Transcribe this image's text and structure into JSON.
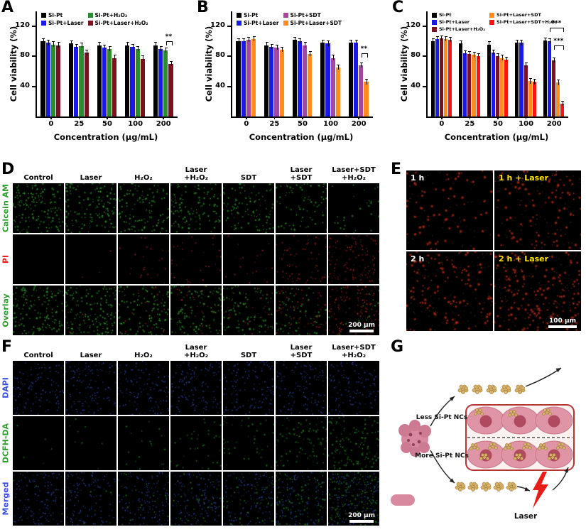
{
  "chart_data": [
    {
      "panel_letter": "A",
      "type": "bar",
      "categories": [
        "0",
        "25",
        "50",
        "100",
        "200"
      ],
      "xlabel": "Concentration (μg/mL)",
      "ylabel": "Cell viability (%)",
      "ylim": [
        0,
        140
      ],
      "yticks": [
        40,
        80,
        120
      ],
      "error": 3,
      "legend_position": "top-inside",
      "series": [
        {
          "name": "Si-Pt",
          "color": "#000000",
          "values": [
            100,
            97,
            95,
            95,
            95
          ]
        },
        {
          "name": "Si-Pt+Laser",
          "color": "#1a1ae6",
          "values": [
            98,
            93,
            92,
            93,
            90
          ]
        },
        {
          "name": "Si-Pt+H₂O₂",
          "color": "#2e8b2e",
          "values": [
            96,
            94,
            90,
            90,
            88
          ]
        },
        {
          "name": "Si-Pt+Laser+H₂O₂",
          "color": "#7a1220",
          "values": [
            95,
            85,
            78,
            77,
            70
          ]
        }
      ],
      "significance": [
        {
          "category_index": 4,
          "from_series": 2,
          "to_series": 3,
          "text": "**",
          "y": 100
        }
      ]
    },
    {
      "panel_letter": "B",
      "type": "bar",
      "categories": [
        "0",
        "25",
        "50",
        "100",
        "200"
      ],
      "xlabel": "Concentration (μg/mL)",
      "ylabel": "Cell viability (%)",
      "ylim": [
        0,
        140
      ],
      "yticks": [
        40,
        80,
        120
      ],
      "error": 3,
      "legend_position": "top-inside",
      "series": [
        {
          "name": "Si-Pt",
          "color": "#000000",
          "values": [
            100,
            95,
            102,
            98,
            98
          ]
        },
        {
          "name": "Si-Pt+Laser",
          "color": "#1a1ae6",
          "values": [
            100,
            93,
            100,
            97,
            98
          ]
        },
        {
          "name": "Si-Pt+SDT",
          "color": "#a347a0",
          "values": [
            102,
            92,
            95,
            78,
            68
          ]
        },
        {
          "name": "Si-Pt+Laser+SDT",
          "color": "#ff8c1e",
          "values": [
            103,
            89,
            83,
            65,
            46
          ]
        }
      ],
      "significance": [
        {
          "category_index": 4,
          "from_series": 2,
          "to_series": 3,
          "text": "**",
          "y": 84
        }
      ]
    },
    {
      "panel_letter": "C",
      "type": "bar",
      "categories": [
        "0",
        "25",
        "50",
        "100",
        "200"
      ],
      "xlabel": "Concentration (μg/mL)",
      "ylabel": "Cell viability (%)",
      "ylim": [
        0,
        140
      ],
      "yticks": [
        40,
        80,
        120
      ],
      "error": 3,
      "legend_position": "top-inside",
      "series": [
        {
          "name": "Si-Pt",
          "color": "#000000",
          "values": [
            100,
            97,
            96,
            98,
            101
          ]
        },
        {
          "name": "Si-Pt+Laser",
          "color": "#1a1ae6",
          "values": [
            103,
            84,
            85,
            98,
            100
          ]
        },
        {
          "name": "Si-Pt+Laser+H₂O₂",
          "color": "#7a1220",
          "values": [
            104,
            83,
            80,
            68,
            75
          ]
        },
        {
          "name": "Si-Pt+Laser+SDT",
          "color": "#ff8c1e",
          "values": [
            103,
            82,
            78,
            47,
            45
          ]
        },
        {
          "name": "Si-Pt+Laser+SDT+H₂O₂",
          "color": "#f51515",
          "values": [
            102,
            80,
            76,
            46,
            17
          ]
        }
      ],
      "significance": [
        {
          "category_index": 4,
          "from_series": 1,
          "to_series": 4,
          "text": "***",
          "y": 118
        },
        {
          "category_index": 4,
          "from_series": 2,
          "to_series": 4,
          "text": "***",
          "y": 95
        }
      ]
    }
  ],
  "panel_d": {
    "letter": "D",
    "columns": [
      "Control",
      "Laser",
      "H₂O₂",
      "Laser\n+H₂O₂",
      "SDT",
      "Laser\n+SDT",
      "Laser+SDT\n+H₂O₂"
    ],
    "rows": [
      {
        "label": "Calcein AM",
        "color": "#2f9e2f"
      },
      {
        "label": "PI",
        "color": "#e62020"
      },
      {
        "label": "Overlay",
        "color": "#2f9e2f"
      }
    ],
    "scale_bar": "200 μm"
  },
  "panel_e": {
    "letter": "E",
    "tiles": [
      {
        "caption": "1 h",
        "color": "#ffffff"
      },
      {
        "caption": "1 h + Laser",
        "color": "#ffe400"
      },
      {
        "caption": "2 h",
        "color": "#ffffff"
      },
      {
        "caption": "2 h + Laser",
        "color": "#ffe400"
      }
    ],
    "scale_bar": "100 μm"
  },
  "panel_f": {
    "letter": "F",
    "columns": [
      "Control",
      "Laser",
      "H₂O₂",
      "Laser\n+H₂O₂",
      "SDT",
      "Laser\n+SDT",
      "Laser+SDT\n+H₂O₂"
    ],
    "rows": [
      {
        "label": "DAPI",
        "color": "#3a4fe0"
      },
      {
        "label": "DCFH-DA",
        "color": "#2f9e2f"
      },
      {
        "label": "Merged",
        "color": "#3a4fe0"
      }
    ],
    "scale_bar": "200 μm"
  },
  "panel_g": {
    "letter": "G",
    "less_label": "Less Si-Pt NCs",
    "more_label": "More Si-Pt NCs",
    "laser_label": "Laser"
  }
}
